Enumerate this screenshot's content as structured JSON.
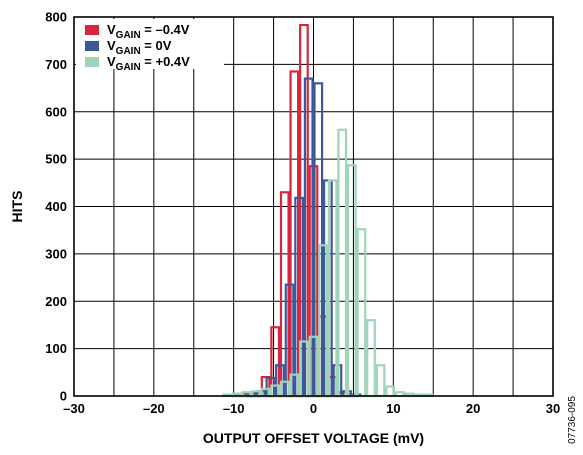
{
  "chart_data": {
    "type": "bar",
    "subtype": "histogram-step-outline",
    "xlabel": "OUTPUT OFFSET VOLTAGE (mV)",
    "ylabel": "HITS",
    "xlim": [
      -30,
      30
    ],
    "ylim": [
      0,
      800
    ],
    "xticks": [
      -30,
      -20,
      -10,
      0,
      10,
      20,
      30
    ],
    "xtick_labels": [
      "–30",
      "–20",
      "–10",
      "0",
      "10",
      "20",
      "30"
    ],
    "yticks": [
      0,
      100,
      200,
      300,
      400,
      500,
      600,
      700,
      800
    ],
    "ytick_labels": [
      "0",
      "100",
      "200",
      "300",
      "400",
      "500",
      "600",
      "700",
      "800"
    ],
    "grid": true,
    "legend_position": "top-left",
    "bin_width": 1.2,
    "series": [
      {
        "name": "V_GAIN = –0.4V",
        "label_main": "V",
        "label_sub": "GAIN",
        "label_rest": " = –0.4V",
        "color": "#d7263d",
        "bins": [
          {
            "x": -9.6,
            "y": 3
          },
          {
            "x": -8.4,
            "y": 5
          },
          {
            "x": -7.2,
            "y": 8
          },
          {
            "x": -6.0,
            "y": 40
          },
          {
            "x": -4.8,
            "y": 145
          },
          {
            "x": -3.6,
            "y": 430
          },
          {
            "x": -2.4,
            "y": 685
          },
          {
            "x": -1.2,
            "y": 783
          },
          {
            "x": 0.0,
            "y": 485
          },
          {
            "x": 1.2,
            "y": 168
          },
          {
            "x": 2.4,
            "y": 40
          },
          {
            "x": 3.6,
            "y": 8
          },
          {
            "x": 4.8,
            "y": 3
          }
        ]
      },
      {
        "name": "V_GAIN = 0V",
        "label_main": "V",
        "label_sub": "GAIN",
        "label_rest": " = 0V",
        "color": "#3b5998",
        "bins": [
          {
            "x": -7.8,
            "y": 5
          },
          {
            "x": -6.6,
            "y": 10
          },
          {
            "x": -5.4,
            "y": 38
          },
          {
            "x": -4.2,
            "y": 65
          },
          {
            "x": -3.0,
            "y": 235
          },
          {
            "x": -1.8,
            "y": 418
          },
          {
            "x": -0.6,
            "y": 670
          },
          {
            "x": 0.6,
            "y": 660
          },
          {
            "x": 1.8,
            "y": 455
          },
          {
            "x": 3.0,
            "y": 65
          },
          {
            "x": 4.2,
            "y": 10
          },
          {
            "x": 5.4,
            "y": 3
          }
        ]
      },
      {
        "name": "V_GAIN = +0.4V",
        "label_main": "V",
        "label_sub": "GAIN",
        "label_rest": " = +0.4V",
        "color": "#9fd4b8",
        "bins": [
          {
            "x": -10.8,
            "y": 3
          },
          {
            "x": -9.6,
            "y": 5
          },
          {
            "x": -8.4,
            "y": 8
          },
          {
            "x": -7.2,
            "y": 10
          },
          {
            "x": -6.0,
            "y": 15
          },
          {
            "x": -4.8,
            "y": 22
          },
          {
            "x": -3.6,
            "y": 30
          },
          {
            "x": -2.4,
            "y": 45
          },
          {
            "x": -1.2,
            "y": 115
          },
          {
            "x": 0.0,
            "y": 125
          },
          {
            "x": 1.2,
            "y": 318
          },
          {
            "x": 2.4,
            "y": 455
          },
          {
            "x": 3.6,
            "y": 562
          },
          {
            "x": 4.8,
            "y": 487
          },
          {
            "x": 6.0,
            "y": 352
          },
          {
            "x": 7.2,
            "y": 160
          },
          {
            "x": 8.4,
            "y": 65
          },
          {
            "x": 9.6,
            "y": 20
          },
          {
            "x": 10.8,
            "y": 8
          },
          {
            "x": 12.0,
            "y": 5
          },
          {
            "x": 13.2,
            "y": 3
          },
          {
            "x": 14.4,
            "y": 3
          }
        ]
      }
    ]
  },
  "figure_code": "07736-095"
}
